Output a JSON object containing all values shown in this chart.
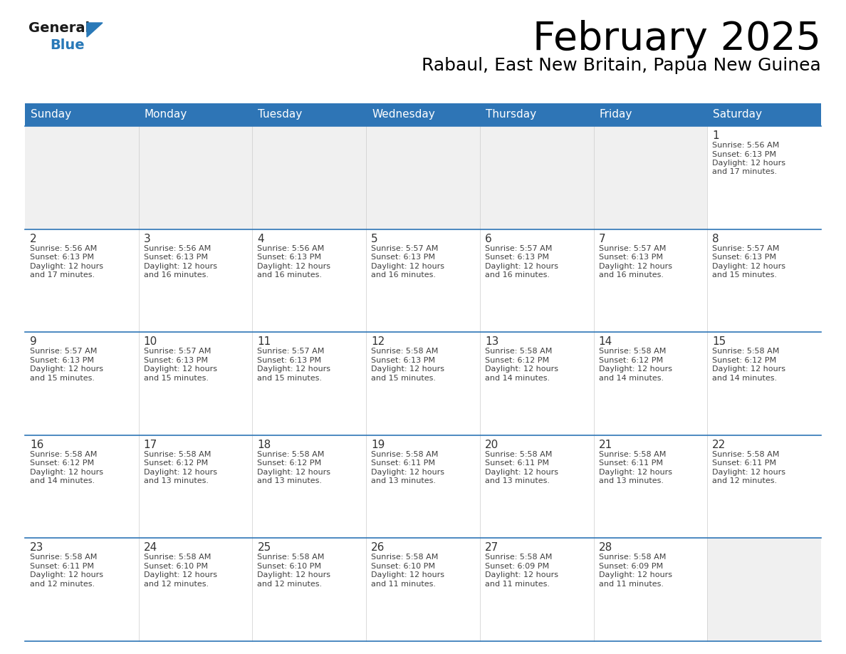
{
  "title": "February 2025",
  "subtitle": "Rabaul, East New Britain, Papua New Guinea",
  "header_bg": "#2E75B6",
  "header_text_color": "#FFFFFF",
  "cell_bg_white": "#FFFFFF",
  "cell_bg_gray": "#F0F0F0",
  "grid_line_color": "#2E75B6",
  "day_number_color": "#333333",
  "cell_text_color": "#404040",
  "days_of_week": [
    "Sunday",
    "Monday",
    "Tuesday",
    "Wednesday",
    "Thursday",
    "Friday",
    "Saturday"
  ],
  "calendar": [
    [
      null,
      null,
      null,
      null,
      null,
      null,
      {
        "day": 1,
        "sunrise": "5:56 AM",
        "sunset": "6:13 PM",
        "daylight_line1": "12 hours",
        "daylight_line2": "and 17 minutes."
      }
    ],
    [
      {
        "day": 2,
        "sunrise": "5:56 AM",
        "sunset": "6:13 PM",
        "daylight_line1": "12 hours",
        "daylight_line2": "and 17 minutes."
      },
      {
        "day": 3,
        "sunrise": "5:56 AM",
        "sunset": "6:13 PM",
        "daylight_line1": "12 hours",
        "daylight_line2": "and 16 minutes."
      },
      {
        "day": 4,
        "sunrise": "5:56 AM",
        "sunset": "6:13 PM",
        "daylight_line1": "12 hours",
        "daylight_line2": "and 16 minutes."
      },
      {
        "day": 5,
        "sunrise": "5:57 AM",
        "sunset": "6:13 PM",
        "daylight_line1": "12 hours",
        "daylight_line2": "and 16 minutes."
      },
      {
        "day": 6,
        "sunrise": "5:57 AM",
        "sunset": "6:13 PM",
        "daylight_line1": "12 hours",
        "daylight_line2": "and 16 minutes."
      },
      {
        "day": 7,
        "sunrise": "5:57 AM",
        "sunset": "6:13 PM",
        "daylight_line1": "12 hours",
        "daylight_line2": "and 16 minutes."
      },
      {
        "day": 8,
        "sunrise": "5:57 AM",
        "sunset": "6:13 PM",
        "daylight_line1": "12 hours",
        "daylight_line2": "and 15 minutes."
      }
    ],
    [
      {
        "day": 9,
        "sunrise": "5:57 AM",
        "sunset": "6:13 PM",
        "daylight_line1": "12 hours",
        "daylight_line2": "and 15 minutes."
      },
      {
        "day": 10,
        "sunrise": "5:57 AM",
        "sunset": "6:13 PM",
        "daylight_line1": "12 hours",
        "daylight_line2": "and 15 minutes."
      },
      {
        "day": 11,
        "sunrise": "5:57 AM",
        "sunset": "6:13 PM",
        "daylight_line1": "12 hours",
        "daylight_line2": "and 15 minutes."
      },
      {
        "day": 12,
        "sunrise": "5:58 AM",
        "sunset": "6:13 PM",
        "daylight_line1": "12 hours",
        "daylight_line2": "and 15 minutes."
      },
      {
        "day": 13,
        "sunrise": "5:58 AM",
        "sunset": "6:12 PM",
        "daylight_line1": "12 hours",
        "daylight_line2": "and 14 minutes."
      },
      {
        "day": 14,
        "sunrise": "5:58 AM",
        "sunset": "6:12 PM",
        "daylight_line1": "12 hours",
        "daylight_line2": "and 14 minutes."
      },
      {
        "day": 15,
        "sunrise": "5:58 AM",
        "sunset": "6:12 PM",
        "daylight_line1": "12 hours",
        "daylight_line2": "and 14 minutes."
      }
    ],
    [
      {
        "day": 16,
        "sunrise": "5:58 AM",
        "sunset": "6:12 PM",
        "daylight_line1": "12 hours",
        "daylight_line2": "and 14 minutes."
      },
      {
        "day": 17,
        "sunrise": "5:58 AM",
        "sunset": "6:12 PM",
        "daylight_line1": "12 hours",
        "daylight_line2": "and 13 minutes."
      },
      {
        "day": 18,
        "sunrise": "5:58 AM",
        "sunset": "6:12 PM",
        "daylight_line1": "12 hours",
        "daylight_line2": "and 13 minutes."
      },
      {
        "day": 19,
        "sunrise": "5:58 AM",
        "sunset": "6:11 PM",
        "daylight_line1": "12 hours",
        "daylight_line2": "and 13 minutes."
      },
      {
        "day": 20,
        "sunrise": "5:58 AM",
        "sunset": "6:11 PM",
        "daylight_line1": "12 hours",
        "daylight_line2": "and 13 minutes."
      },
      {
        "day": 21,
        "sunrise": "5:58 AM",
        "sunset": "6:11 PM",
        "daylight_line1": "12 hours",
        "daylight_line2": "and 13 minutes."
      },
      {
        "day": 22,
        "sunrise": "5:58 AM",
        "sunset": "6:11 PM",
        "daylight_line1": "12 hours",
        "daylight_line2": "and 12 minutes."
      }
    ],
    [
      {
        "day": 23,
        "sunrise": "5:58 AM",
        "sunset": "6:11 PM",
        "daylight_line1": "12 hours",
        "daylight_line2": "and 12 minutes."
      },
      {
        "day": 24,
        "sunrise": "5:58 AM",
        "sunset": "6:10 PM",
        "daylight_line1": "12 hours",
        "daylight_line2": "and 12 minutes."
      },
      {
        "day": 25,
        "sunrise": "5:58 AM",
        "sunset": "6:10 PM",
        "daylight_line1": "12 hours",
        "daylight_line2": "and 12 minutes."
      },
      {
        "day": 26,
        "sunrise": "5:58 AM",
        "sunset": "6:10 PM",
        "daylight_line1": "12 hours",
        "daylight_line2": "and 11 minutes."
      },
      {
        "day": 27,
        "sunrise": "5:58 AM",
        "sunset": "6:09 PM",
        "daylight_line1": "12 hours",
        "daylight_line2": "and 11 minutes."
      },
      {
        "day": 28,
        "sunrise": "5:58 AM",
        "sunset": "6:09 PM",
        "daylight_line1": "12 hours",
        "daylight_line2": "and 11 minutes."
      },
      null
    ]
  ],
  "logo_general_color": "#1a1a1a",
  "logo_blue_color": "#2979B8",
  "logo_triangle_color": "#2979B8",
  "title_fontsize": 40,
  "subtitle_fontsize": 18,
  "header_fontsize": 11,
  "day_number_fontsize": 11,
  "cell_text_fontsize": 8
}
